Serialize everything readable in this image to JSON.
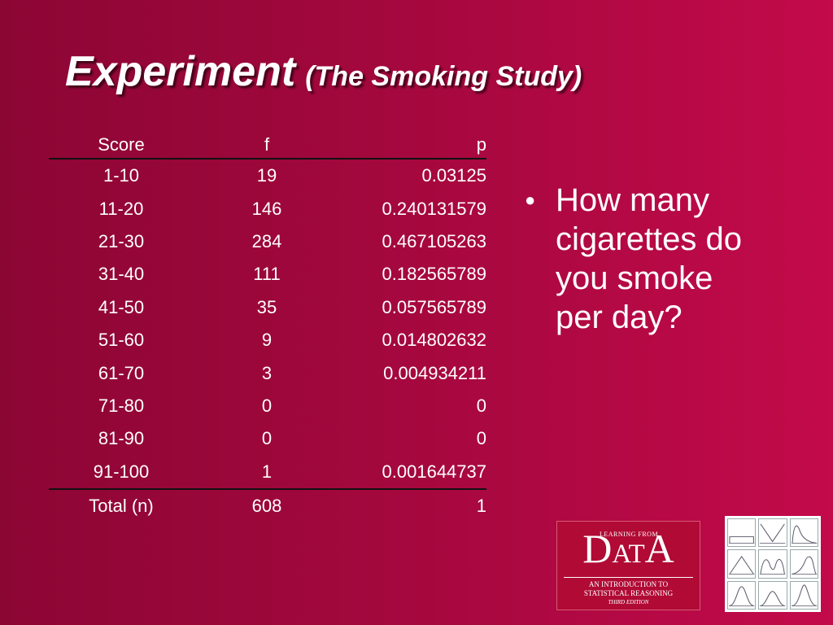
{
  "slide": {
    "title_main": "Experiment",
    "title_sub": "(The Smoking Study)"
  },
  "table": {
    "headers": [
      "Score",
      "f",
      "p"
    ],
    "rows": [
      [
        "1-10",
        "19",
        "0.03125"
      ],
      [
        "11-20",
        "146",
        "0.240131579"
      ],
      [
        "21-30",
        "284",
        "0.467105263"
      ],
      [
        "31-40",
        "111",
        "0.182565789"
      ],
      [
        "41-50",
        "35",
        "0.057565789"
      ],
      [
        "51-60",
        "9",
        "0.014802632"
      ],
      [
        "61-70",
        "3",
        "0.004934211"
      ],
      [
        "71-80",
        "0",
        "0"
      ],
      [
        "81-90",
        "0",
        "0"
      ],
      [
        "91-100",
        "1",
        "0.001644737"
      ]
    ],
    "total": [
      "Total (n)",
      "608",
      "1"
    ]
  },
  "bullet": {
    "marker": "●",
    "text_lines": [
      "How many",
      "cigarettes do",
      "you smoke",
      "per day?"
    ]
  },
  "book_cover": {
    "learning_from": "LEARNING FROM",
    "data_letters": [
      "D",
      "A",
      "T",
      "A"
    ],
    "subtitle_line1": "AN INTRODUCTION TO",
    "subtitle_line2": "STATISTICAL REASONING",
    "edition": "THIRD EDITION"
  },
  "colors": {
    "background_left": "#8c0634",
    "background_right": "#c30a4a",
    "text": "#ffffff",
    "table_rule": "#111111",
    "book_cover": "#b00a35"
  }
}
